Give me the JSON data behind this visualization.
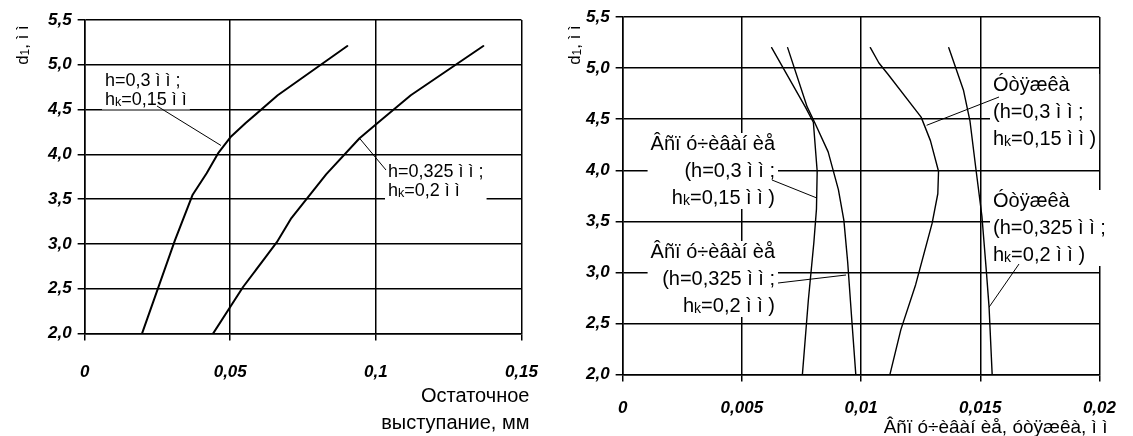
{
  "chart_data": [
    {
      "type": "line",
      "xlabel": "Остаточное выступание, мм",
      "ylabel": "d$_{1}$, ì ì",
      "xlim": [
        0,
        0.15
      ],
      "ylim": [
        2,
        5.5
      ],
      "xticks": [
        0,
        {
          "value": 0.05,
          "label": "0,05"
        },
        {
          "value": 0.1,
          "label": "0,1"
        },
        {
          "value": 0.15,
          "label": "0,15"
        }
      ],
      "yticks": [
        {
          "value": 2,
          "label": "2,0"
        },
        {
          "value": 2.5,
          "label": "2,5"
        },
        {
          "value": 3,
          "label": "3,0"
        },
        {
          "value": 3.5,
          "label": "3,5"
        },
        {
          "value": 4,
          "label": "4,0"
        },
        {
          "value": 4.5,
          "label": "4,5"
        },
        {
          "value": 5,
          "label": "5,0"
        },
        {
          "value": 5.5,
          "label": "5,5"
        }
      ],
      "grid": true,
      "legend": false,
      "marker": "none",
      "line_style": "solid",
      "series": [
        {
          "color": "#000000",
          "x": [
            0.0197,
            0.031,
            0.0371,
            0.0419,
            0.046,
            0.0503,
            0.0553,
            0.0663,
            0.0902
          ],
          "values": [
            2.0,
            3.04,
            3.55,
            3.79,
            4.02,
            4.2,
            4.35,
            4.66,
            5.21
          ]
        },
        {
          "color": "#000000",
          "x": [
            0.0441,
            0.0544,
            0.066,
            0.071,
            0.083,
            0.0944,
            0.1006,
            0.112,
            0.1369
          ],
          "values": [
            2.0,
            2.52,
            3.02,
            3.29,
            3.78,
            4.18,
            4.35,
            4.66,
            5.21
          ]
        }
      ],
      "annotations": [
        {
          "text": "h=0,3 ì ì ;\nh$_{k}$=0,15 ì ì",
          "x": 0.0468,
          "y": 4.1
        },
        {
          "text": "h=0,325 ì ì ;\nh$_{k}$=0,2 ì ì",
          "x": 0.0944,
          "y": 4.18
        }
      ]
    },
    {
      "type": "line",
      "xlabel": "Âñï ó÷èâàí èå, óòÿæêà, ì ì",
      "ylabel": "d$_{1}$, ì ì",
      "xlim": [
        0,
        0.02
      ],
      "ylim": [
        2,
        5.5
      ],
      "xticks": [
        0,
        {
          "value": 0.005,
          "label": "0,005"
        },
        {
          "value": 0.01,
          "label": "0,01"
        },
        {
          "value": 0.015,
          "label": "0,015"
        },
        {
          "value": 0.02,
          "label": "0,02"
        }
      ],
      "yticks": [
        {
          "value": 2,
          "label": "2,0"
        },
        {
          "value": 2.5,
          "label": "2,5"
        },
        {
          "value": 3,
          "label": "3,0"
        },
        {
          "value": 3.5,
          "label": "3,5"
        },
        {
          "value": 4,
          "label": "4,0"
        },
        {
          "value": 4.5,
          "label": "4,5"
        },
        {
          "value": 5,
          "label": "5,0"
        },
        {
          "value": 5.5,
          "label": "5,5"
        }
      ],
      "grid": true,
      "legend": false,
      "marker": "none",
      "line_style": "solid",
      "series": [
        {
          "color": "#000000",
          "x": [
            0.00625,
            0.00766,
            0.008,
            0.00816,
            0.00813,
            0.00802,
            0.00779,
            0.00754
          ],
          "values": [
            5.2,
            4.62,
            4.47,
            3.99,
            3.62,
            3.29,
            2.73,
            2.0
          ]
        },
        {
          "color": "#000000",
          "x": [
            0.00692,
            0.00774,
            0.00805,
            0.00862,
            0.00905,
            0.00928,
            0.00944,
            0.00962,
            0.00978
          ],
          "values": [
            5.2,
            4.62,
            4.47,
            4.18,
            3.81,
            3.51,
            3.1,
            2.51,
            2.0
          ]
        },
        {
          "color": "#000000",
          "x": [
            0.01039,
            0.01075,
            0.01113,
            0.01252,
            0.01291,
            0.01325,
            0.01322,
            0.01298,
            0.01229,
            0.01167,
            0.01121
          ],
          "values": [
            5.2,
            5.05,
            4.94,
            4.52,
            4.29,
            3.99,
            3.77,
            3.48,
            2.88,
            2.44,
            2.0
          ]
        },
        {
          "color": "#000000",
          "x": [
            0.01368,
            0.0143,
            0.01457,
            0.01483,
            0.01507,
            0.01525,
            0.01537,
            0.0155
          ],
          "values": [
            5.2,
            4.78,
            4.48,
            3.99,
            3.55,
            3.03,
            2.66,
            2.0
          ]
        }
      ],
      "annotations": [
        {
          "text": "Âñï ó÷èâàí èå\n(h=0,3 ì ì ;\nh$_{k}$=0,15 ì ì )",
          "x": 0.00813,
          "y": 3.73
        },
        "Âñï ó÷èâàí èå\n(h=0,325 ì ì ;\nh$_{k}$=0,2 ì ì )",
        {
          "text": "Óòÿæêà\n(h=0,3 ì ì ;\nh$_{k}$=0,15 ì ì )",
          "x": 0.01275,
          "y": 4.44
        },
        {
          "text": "Óòÿæêà\n(h=0,325 ì ì ;\nh$_{k}$=0,2 ì ì )",
          "x": 0.01537,
          "y": 2.66
        }
      ]
    }
  ]
}
